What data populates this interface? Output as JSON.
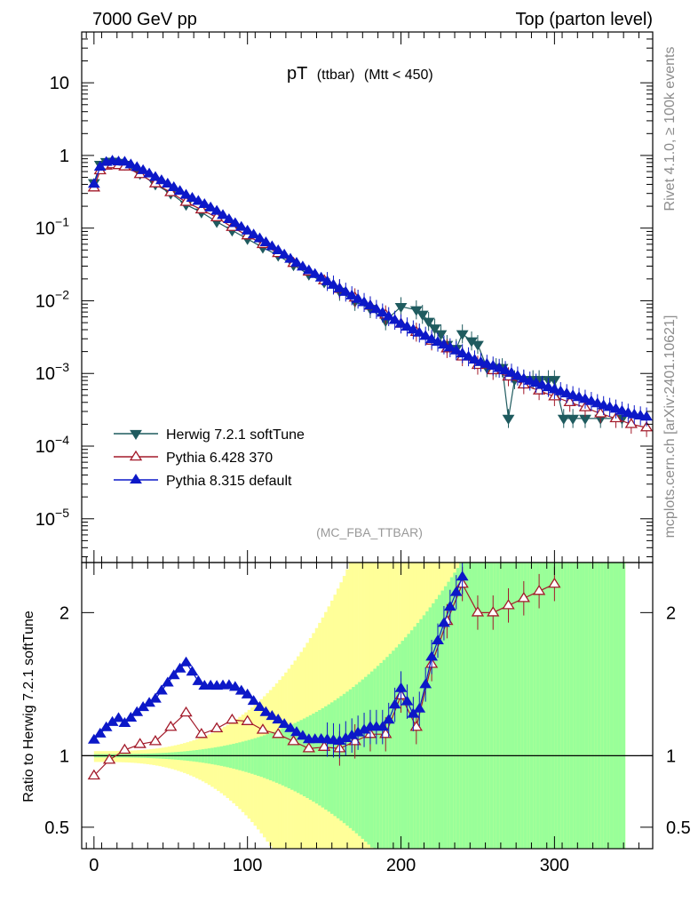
{
  "header": {
    "left": "7000 GeV pp",
    "right": "Top (parton level)"
  },
  "right_labels": {
    "rivet": "Rivet 4.1.0, ≥ 100k events",
    "mcplots": "mcplots.cern.ch [arXiv:2401.10621]"
  },
  "chart_data": {
    "type": "line",
    "title": "pT",
    "title_sub": "(ttbar)",
    "title_cut": "(Mtt < 450)",
    "analysis": "(MC_FBA_TTBAR)",
    "xlim": [
      -8,
      364
    ],
    "ylim_main": [
      2.5e-06,
      50
    ],
    "ylim_ratio": [
      0.35,
      2.35
    ],
    "ylabel_ratio": "Ratio to Herwig 7.2.1 softTune",
    "x_ticks": [
      "0",
      "100",
      "200",
      "300"
    ],
    "x_tick_values": [
      0,
      100,
      200,
      300
    ],
    "y_ticks_main": [
      {
        "value": 10,
        "base": "10",
        "exp": ""
      },
      {
        "value": 1,
        "base": "1",
        "exp": ""
      },
      {
        "value": 0.1,
        "base": "10",
        "exp": "−1"
      },
      {
        "value": 0.01,
        "base": "10",
        "exp": "−2"
      },
      {
        "value": 0.001,
        "base": "10",
        "exp": "−3"
      },
      {
        "value": 0.0001,
        "base": "10",
        "exp": "−4"
      },
      {
        "value": 1e-05,
        "base": "10",
        "exp": "−5"
      }
    ],
    "y_ticks_ratio": [
      {
        "value": 2,
        "label": "2"
      },
      {
        "value": 1,
        "label": "1"
      },
      {
        "value": 0.5,
        "label": "0.5"
      }
    ],
    "legend": [
      {
        "name": "Herwig 7.2.1 softTune",
        "color": "#1f5b5f",
        "marker": "down-filled"
      },
      {
        "name": "Pythia 6.428 370",
        "color": "#a31a2a",
        "marker": "up-open"
      },
      {
        "name": "Pythia 8.315 default",
        "color": "#0c18c8",
        "marker": "up-filled"
      }
    ],
    "band_colors": {
      "outer": "#ffff99",
      "inner": "#99ff99",
      "ref_line": "#000000"
    },
    "series_main": [
      {
        "name": "Herwig 7.2.1 softTune",
        "x": [
          0,
          4,
          8,
          12,
          16,
          20,
          30,
          40,
          50,
          60,
          70,
          80,
          90,
          100,
          110,
          120,
          130,
          140,
          150,
          160,
          170,
          180,
          190,
          200,
          210,
          214,
          218,
          222,
          226,
          230,
          236,
          240,
          246,
          250,
          256,
          262,
          266,
          270,
          274,
          280,
          286,
          290,
          296,
          300,
          306,
          312,
          320,
          330,
          344
        ],
        "y": [
          0.42,
          0.75,
          0.82,
          0.83,
          0.8,
          0.75,
          0.56,
          0.4,
          0.3,
          0.21,
          0.165,
          0.122,
          0.093,
          0.071,
          0.054,
          0.042,
          0.031,
          0.023,
          0.018,
          0.0135,
          0.0098,
          0.0078,
          0.0053,
          0.0083,
          0.0075,
          0.0065,
          0.0052,
          0.0042,
          0.0035,
          0.0025,
          0.0022,
          0.0035,
          0.0028,
          0.0025,
          0.0012,
          0.0012,
          0.0012,
          0.00024,
          0.00082,
          0.00082,
          0.00082,
          0.00082,
          0.00082,
          0.00082,
          0.00024,
          0.00024,
          0.00024,
          0.00024,
          0.00024
        ]
      },
      {
        "name": "Pythia 6.428 370",
        "x": [
          0,
          4,
          8,
          12,
          16,
          20,
          30,
          40,
          50,
          60,
          70,
          80,
          90,
          100,
          110,
          120,
          130,
          140,
          150,
          160,
          170,
          180,
          190,
          200,
          210,
          220,
          230,
          240,
          250,
          260,
          270,
          280,
          290,
          300,
          310,
          320,
          330,
          340,
          350,
          360
        ],
        "y": [
          0.36,
          0.62,
          0.72,
          0.75,
          0.73,
          0.7,
          0.55,
          0.41,
          0.31,
          0.228,
          0.18,
          0.14,
          0.103,
          0.079,
          0.06,
          0.045,
          0.033,
          0.025,
          0.019,
          0.0145,
          0.011,
          0.0085,
          0.0064,
          0.0048,
          0.0037,
          0.0028,
          0.0022,
          0.0017,
          0.0013,
          0.0011,
          0.0009,
          0.0007,
          0.00058,
          0.00048,
          0.0004,
          0.00034,
          0.00028,
          0.00024,
          0.0002,
          0.00018
        ]
      }
    ],
    "series_ratio": [
      {
        "name": "Pythia 6.428 370",
        "x": [
          0,
          10,
          20,
          30,
          40,
          50,
          60,
          70,
          80,
          90,
          100,
          110,
          120,
          130,
          140,
          150,
          160,
          170,
          180,
          190,
          200,
          210,
          220,
          230,
          240,
          250,
          260,
          270,
          280,
          290,
          300
        ],
        "y": [
          0.86,
          0.97,
          1.04,
          1.08,
          1.1,
          1.2,
          1.3,
          1.15,
          1.19,
          1.25,
          1.24,
          1.18,
          1.15,
          1.1,
          1.05,
          1.06,
          1.05,
          1.1,
          1.15,
          1.15,
          1.42,
          1.2,
          1.64,
          1.94,
          2.2,
          2.0,
          2.0,
          2.05,
          2.1,
          2.15,
          2.2
        ]
      }
    ]
  }
}
